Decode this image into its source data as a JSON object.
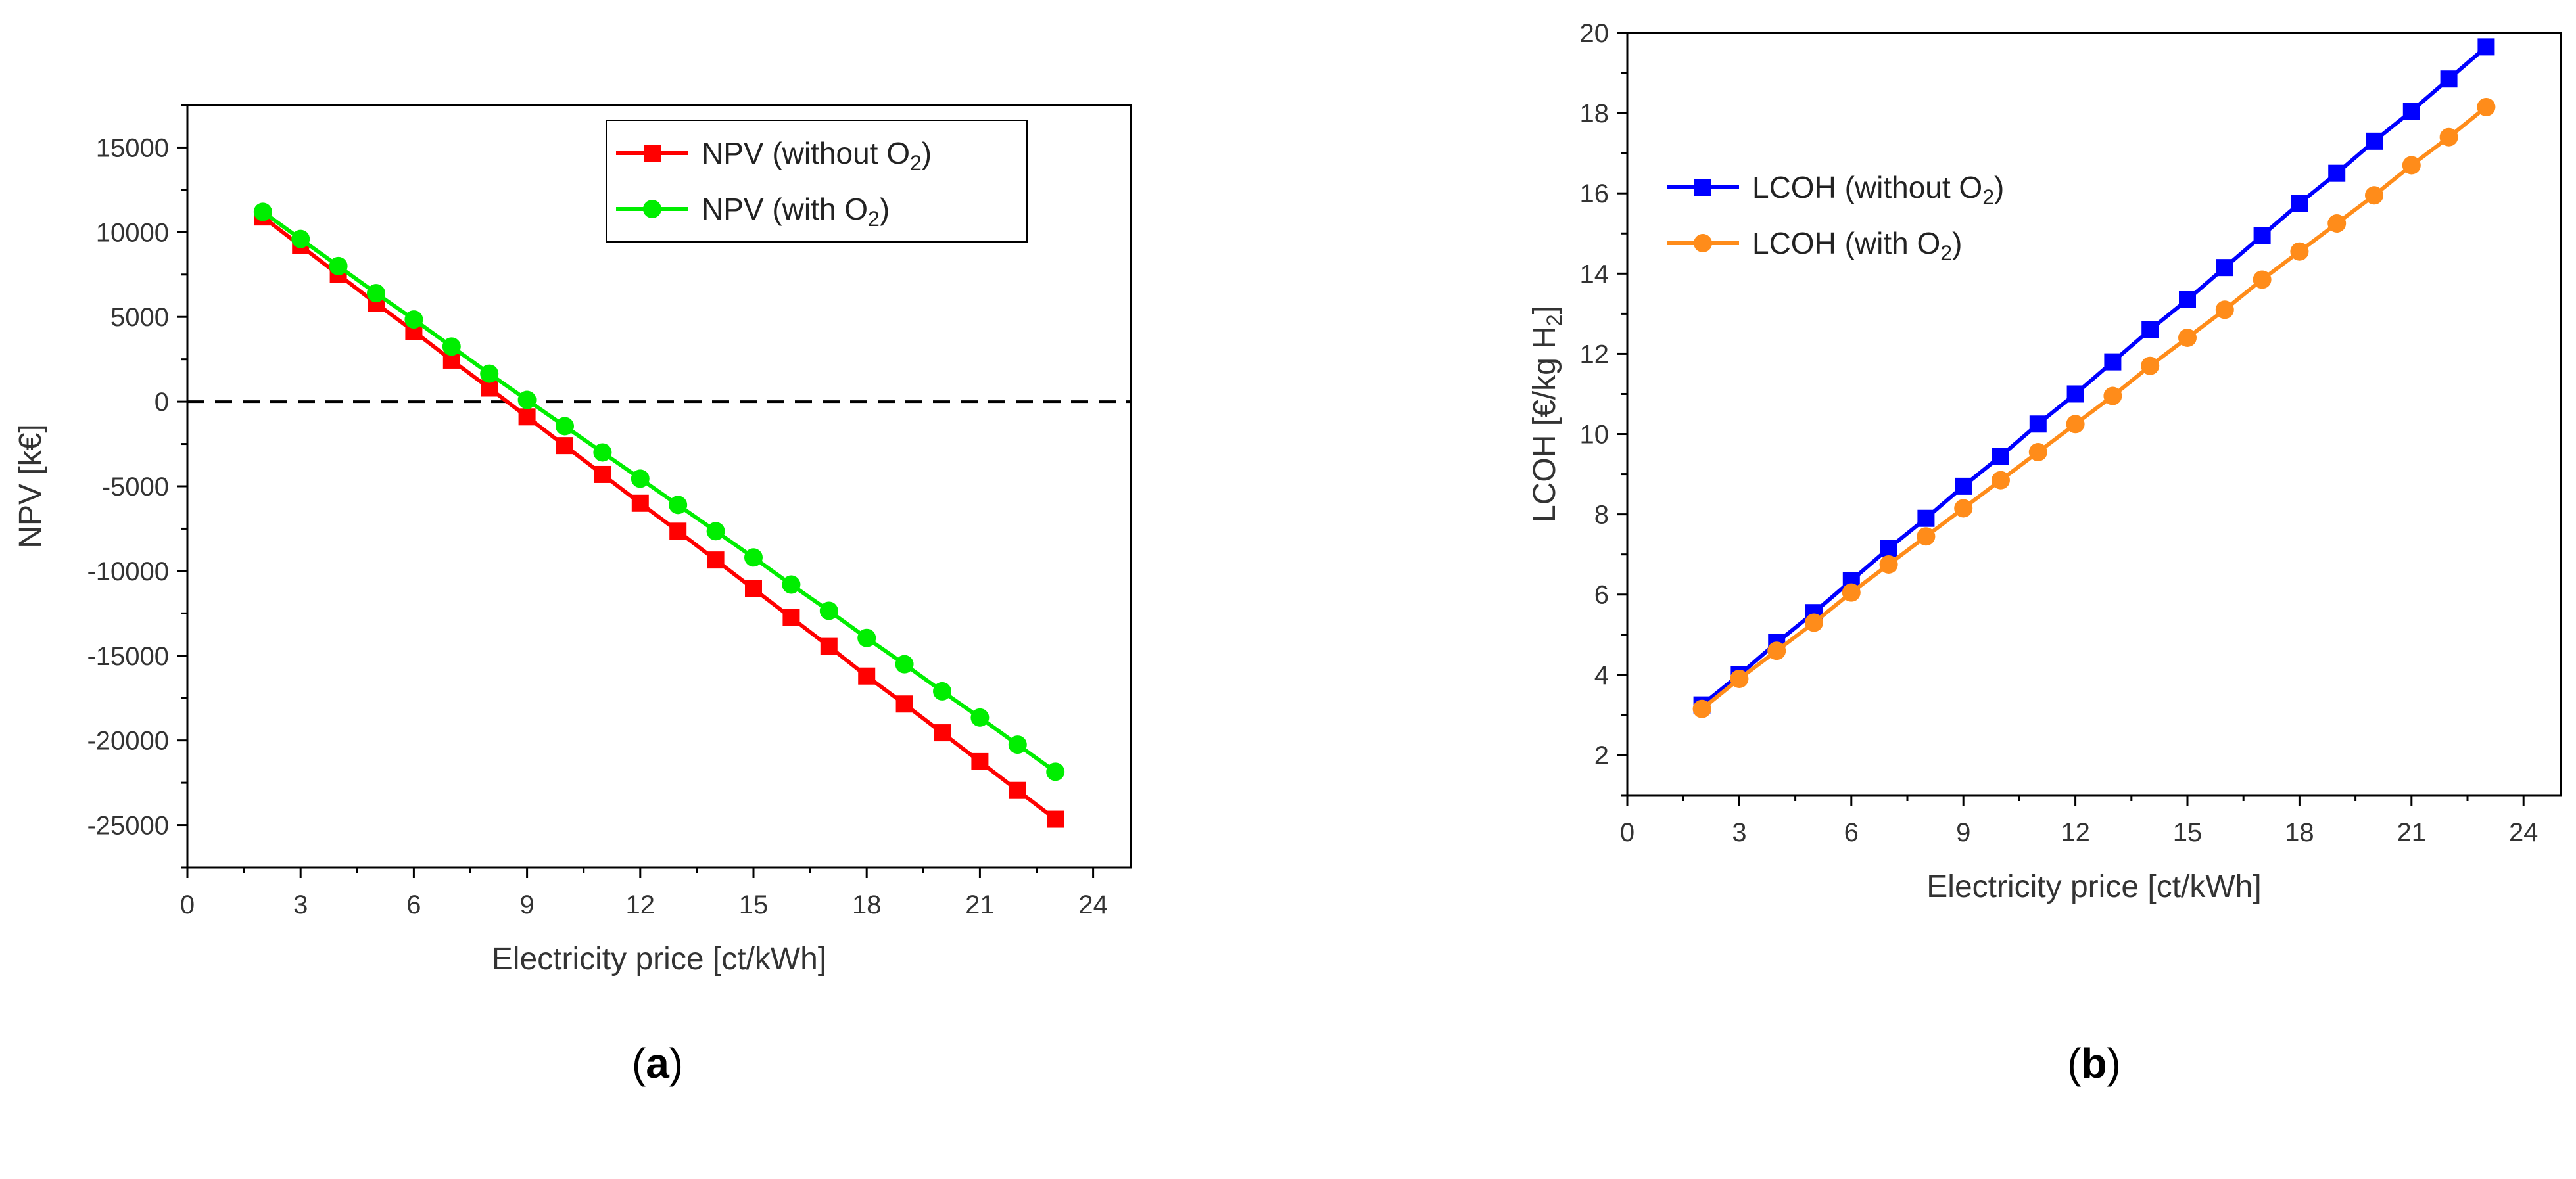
{
  "chart_data": [
    {
      "type": "line",
      "panel_label": "a",
      "title": "",
      "xlabel": "Electricity price [ct/kWh]",
      "ylabel": "NPV [k€]",
      "xlim": [
        0,
        25
      ],
      "ylim": [
        -27500,
        17500
      ],
      "xticks": [
        0,
        3,
        6,
        9,
        12,
        15,
        18,
        21,
        24
      ],
      "yticks": [
        -25000,
        -20000,
        -15000,
        -10000,
        -5000,
        0,
        5000,
        10000,
        15000
      ],
      "reference_line": {
        "y": 0,
        "style": "dashed",
        "color": "#000000"
      },
      "legend": {
        "position": "top-right",
        "frame": true
      },
      "x": [
        2,
        3,
        4,
        5,
        6,
        7,
        8,
        9,
        10,
        11,
        12,
        13,
        14,
        15,
        16,
        17,
        18,
        19,
        20,
        21,
        22,
        23
      ],
      "series": [
        {
          "name": "NPV (without O",
          "name_sub": "2",
          "name_end": ")",
          "color": "#ff0000",
          "marker": "square",
          "values": [
            10900,
            9200,
            7500,
            5800,
            4150,
            2450,
            800,
            -900,
            -2600,
            -4300,
            -6000,
            -7650,
            -9350,
            -11050,
            -12750,
            -14450,
            -16200,
            -17850,
            -19550,
            -21250,
            -22950,
            -24650
          ]
        },
        {
          "name": "NPV (with O",
          "name_sub": "2",
          "name_end": ")",
          "color": "#00ee00",
          "marker": "circle",
          "values": [
            11200,
            9600,
            8000,
            6400,
            4850,
            3250,
            1650,
            100,
            -1450,
            -3000,
            -4550,
            -6100,
            -7650,
            -9200,
            -10800,
            -12350,
            -13950,
            -15500,
            -17100,
            -18650,
            -20250,
            -21850
          ]
        }
      ]
    },
    {
      "type": "line",
      "panel_label": "b",
      "title": "",
      "xlabel": "Electricity price [ct/kWh]",
      "ylabel": "LCOH [€/kg H",
      "ylabel_sub": "2",
      "ylabel_end": "]",
      "xlim": [
        0,
        25
      ],
      "ylim": [
        1,
        20
      ],
      "xticks": [
        0,
        3,
        6,
        9,
        12,
        15,
        18,
        21,
        24
      ],
      "yticks": [
        2,
        4,
        6,
        8,
        10,
        12,
        14,
        16,
        18,
        20
      ],
      "legend": {
        "position": "top-left",
        "frame": false
      },
      "x": [
        2,
        3,
        4,
        5,
        6,
        7,
        8,
        9,
        10,
        11,
        12,
        13,
        14,
        15,
        16,
        17,
        18,
        19,
        20,
        21,
        22,
        23
      ],
      "series": [
        {
          "name": "LCOH (without O",
          "name_sub": "2",
          "name_end": ")",
          "color": "#0000ff",
          "marker": "square",
          "values": [
            3.25,
            4.0,
            4.8,
            5.55,
            6.35,
            7.15,
            7.9,
            8.7,
            9.45,
            10.25,
            11.0,
            11.8,
            12.6,
            13.35,
            14.15,
            14.95,
            15.75,
            16.5,
            17.3,
            18.05,
            18.85,
            19.65
          ]
        },
        {
          "name": "LCOH (with O",
          "name_sub": "2",
          "name_end": ")",
          "color": "#ff8c1a",
          "marker": "circle",
          "values": [
            3.15,
            3.9,
            4.6,
            5.3,
            6.05,
            6.75,
            7.45,
            8.15,
            8.85,
            9.55,
            10.25,
            10.95,
            11.7,
            12.4,
            13.1,
            13.85,
            14.55,
            15.25,
            15.95,
            16.7,
            17.4,
            18.15
          ]
        }
      ]
    }
  ]
}
